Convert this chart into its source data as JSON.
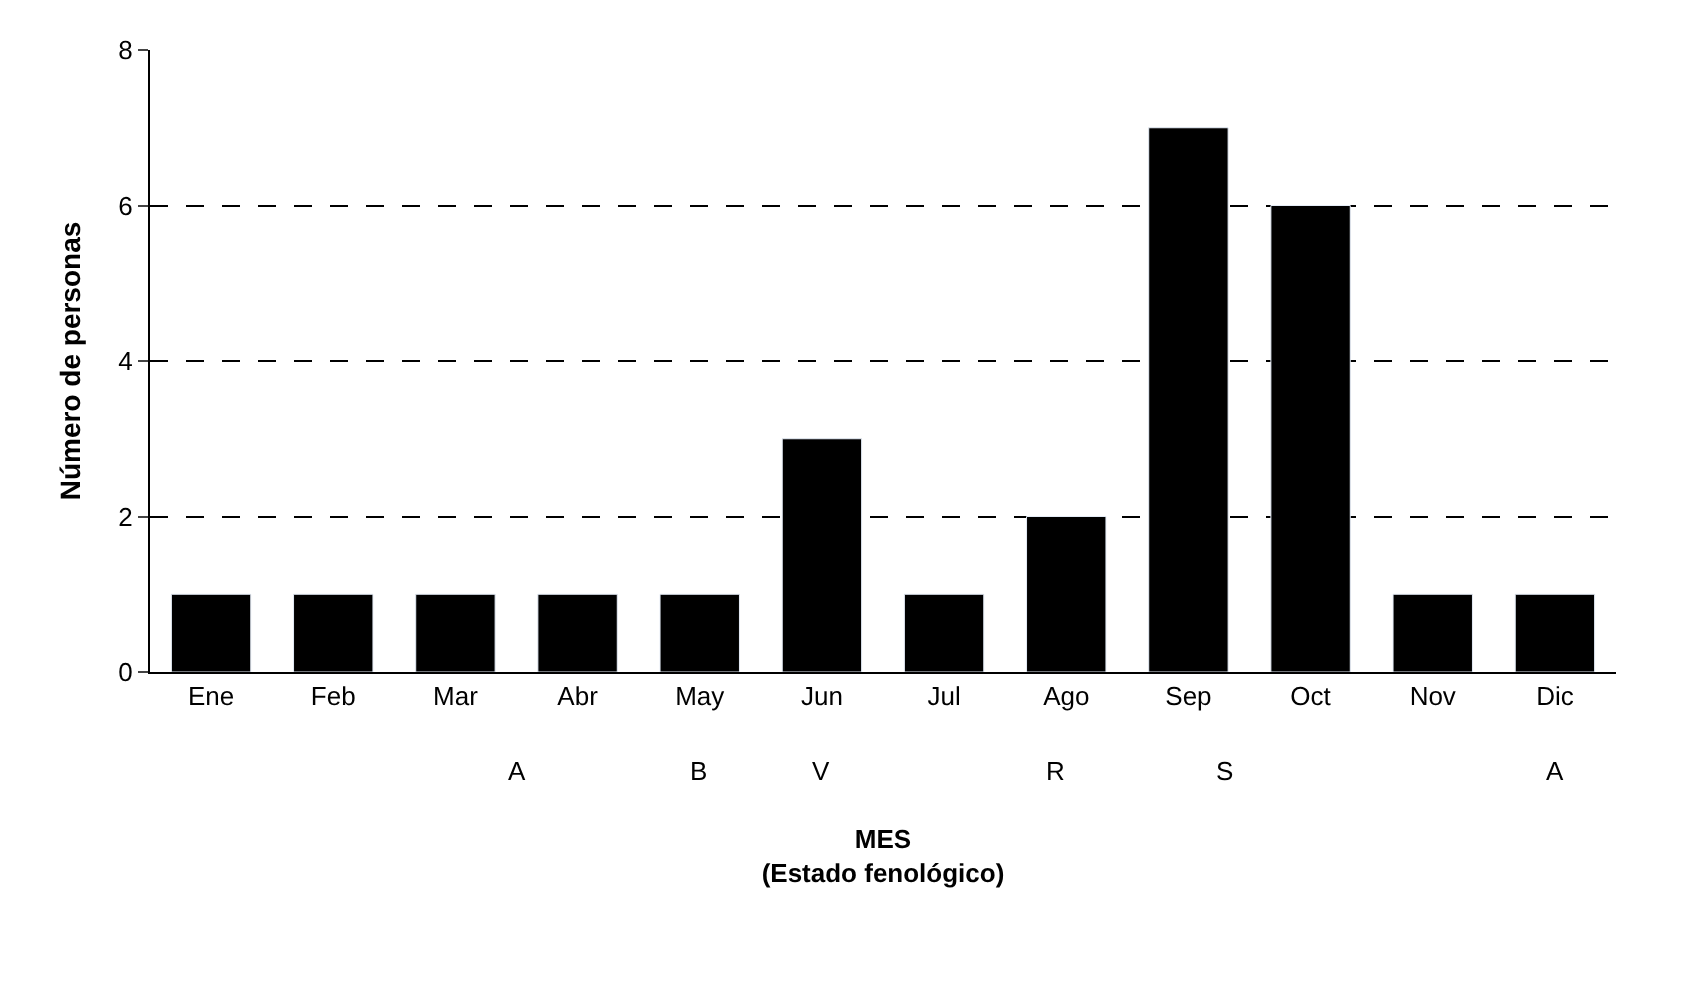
{
  "chart_data": {
    "type": "bar",
    "xlabel": "MES\n(Estado fenológico)",
    "ylabel": "Número de personas",
    "categories": [
      "Ene",
      "Feb",
      "Mar",
      "Abr",
      "May",
      "Jun",
      "Jul",
      "Ago",
      "Sep",
      "Oct",
      "Nov",
      "Dic"
    ],
    "values": [
      1,
      1,
      1,
      1,
      1,
      3,
      1,
      2,
      7,
      6,
      1,
      1
    ],
    "color": "#000000",
    "ylim": [
      0,
      8
    ],
    "yticks": [
      0,
      2,
      4,
      6,
      8
    ],
    "grid": "y",
    "annotations": [
      "A",
      "B",
      "V",
      "R",
      "S",
      "A"
    ]
  }
}
